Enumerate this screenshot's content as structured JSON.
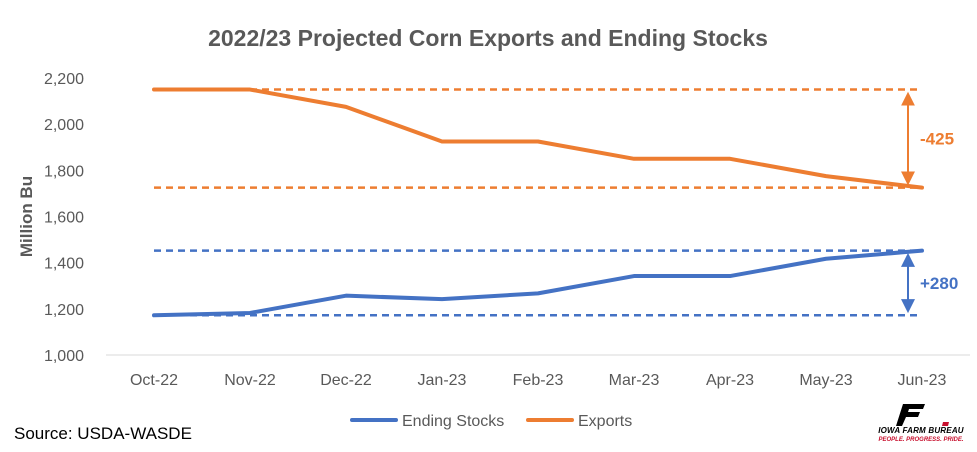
{
  "chart_data": {
    "type": "line",
    "title": "2022/23 Projected Corn Exports and Ending Stocks",
    "ylabel": "Million Bu",
    "xlabel": "",
    "ylim": [
      1000,
      2200
    ],
    "yticks": [
      1000,
      1200,
      1400,
      1600,
      1800,
      2000,
      2200
    ],
    "ytick_labels": [
      "1,000",
      "1,200",
      "1,400",
      "1,600",
      "1,800",
      "2,000",
      "2,200"
    ],
    "categories": [
      "Oct-22",
      "Nov-22",
      "Dec-22",
      "Jan-23",
      "Feb-23",
      "Mar-23",
      "Apr-23",
      "May-23",
      "Jun-23"
    ],
    "series": [
      {
        "name": "Ending Stocks",
        "color": "#4472C4",
        "values": [
          1172,
          1182,
          1257,
          1242,
          1267,
          1342,
          1342,
          1417,
          1452
        ]
      },
      {
        "name": "Exports",
        "color": "#ED7D31",
        "values": [
          2150,
          2150,
          2075,
          1925,
          1925,
          1850,
          1850,
          1775,
          1725
        ]
      }
    ],
    "reference_lines": [
      {
        "value": 2150,
        "color": "#ED7D31"
      },
      {
        "value": 1725,
        "color": "#ED7D31"
      },
      {
        "value": 1452,
        "color": "#4472C4"
      },
      {
        "value": 1172,
        "color": "#4472C4"
      }
    ],
    "annotations": [
      {
        "text": "-425",
        "from": 2150,
        "to": 1725,
        "color": "#ED7D31"
      },
      {
        "text": "+280",
        "from": 1452,
        "to": 1172,
        "color": "#4472C4"
      }
    ],
    "grid": false,
    "legend_position": "bottom"
  },
  "source_text": "Source: USDA-WASDE",
  "logo": {
    "brand": "FB",
    "line1": "IOWA FARM BUREAU",
    "line2": "PEOPLE. PROGRESS. PRIDE.",
    "brand_color": "#000000",
    "accent_color": "#c8102e"
  },
  "colors": {
    "axis_text": "#595959",
    "title": "#595959",
    "axis_line": "#d9d9d9"
  }
}
